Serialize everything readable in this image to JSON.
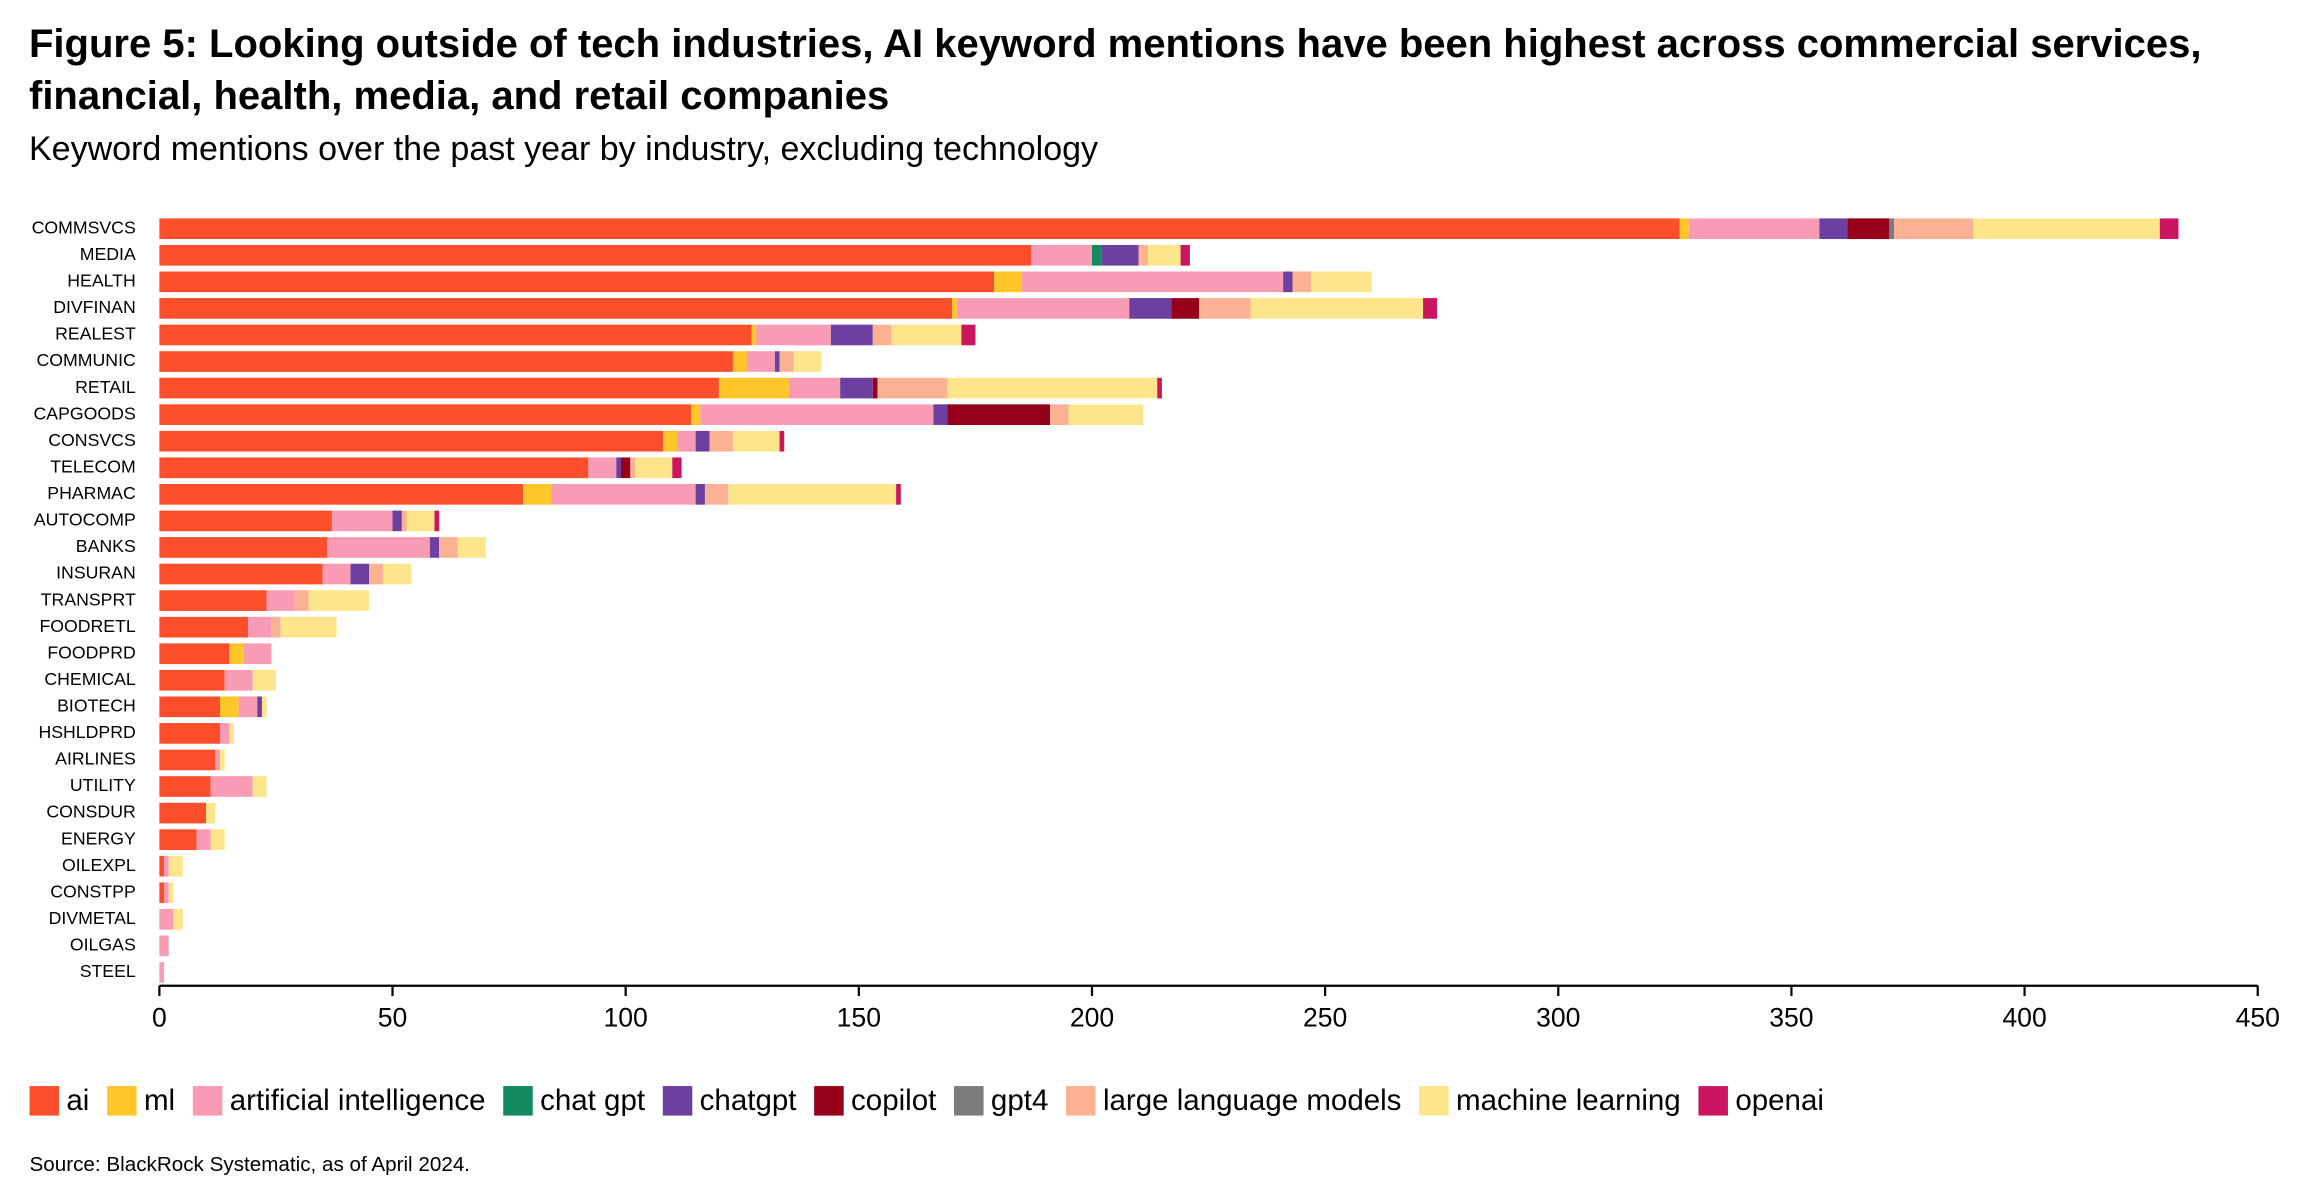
{
  "chart_data": {
    "type": "stacked-bar-horizontal",
    "title": "Figure 5: Looking outside of tech industries, AI keyword mentions have been highest across commercial services, financial, health, media, and retail companies",
    "subtitle": "Keyword mentions over the past year by industry, excluding technology",
    "source": "Source: BlackRock Systematic, as of April 2024.",
    "categories": [
      "COMMSVCS",
      "MEDIA",
      "HEALTH",
      "DIVFINAN",
      "REALEST",
      "COMMUNIC",
      "RETAIL",
      "CAPGOODS",
      "CONSVCS",
      "TELECOM",
      "PHARMAC",
      "AUTOCOMP",
      "BANKS",
      "INSURAN",
      "TRANSPRT",
      "FOODRETL",
      "FOODPRD",
      "CHEMICAL",
      "BIOTECH",
      "HSHLDPRD",
      "AIRLINES",
      "UTILITY",
      "CONSDUR",
      "ENERGY",
      "OILEXPL",
      "CONSTPP",
      "DIVMETAL",
      "OILGAS",
      "STEEL"
    ],
    "series": [
      {
        "name": "ai",
        "color": "#fc4e2a",
        "values": [
          326,
          187,
          179,
          170,
          127,
          123,
          120,
          114,
          108,
          92,
          78,
          37,
          36,
          35,
          23,
          19,
          15,
          14,
          13,
          13,
          12,
          11,
          10,
          8,
          1,
          1,
          0,
          0,
          0
        ]
      },
      {
        "name": "ml",
        "color": "#ffc629",
        "values": [
          2,
          0,
          6,
          1,
          1,
          3,
          15,
          2,
          3,
          0,
          6,
          0,
          0,
          0,
          0,
          0,
          3,
          0,
          4,
          0,
          0,
          0,
          0,
          0,
          0,
          0,
          0,
          0,
          0
        ]
      },
      {
        "name": "artificial intelligence",
        "color": "#f99bb5",
        "values": [
          28,
          13,
          56,
          37,
          16,
          6,
          11,
          50,
          4,
          6,
          31,
          13,
          22,
          6,
          6,
          5,
          6,
          6,
          4,
          2,
          1,
          9,
          0,
          3,
          1,
          1,
          3,
          2,
          1
        ]
      },
      {
        "name": "chat gpt",
        "color": "#138a5e",
        "values": [
          0,
          2,
          0,
          0,
          0,
          0,
          0,
          0,
          0,
          0,
          0,
          0,
          0,
          0,
          0,
          0,
          0,
          0,
          0,
          0,
          0,
          0,
          0,
          0,
          0,
          0,
          0,
          0,
          0
        ]
      },
      {
        "name": "chatgpt",
        "color": "#6d3fa0",
        "values": [
          6,
          8,
          2,
          9,
          9,
          1,
          7,
          3,
          3,
          1,
          2,
          2,
          2,
          4,
          0,
          0,
          0,
          0,
          1,
          0,
          0,
          0,
          0,
          0,
          0,
          0,
          0,
          0,
          0
        ]
      },
      {
        "name": "copilot",
        "color": "#960018",
        "values": [
          9,
          0,
          0,
          6,
          0,
          0,
          1,
          22,
          0,
          2,
          0,
          0,
          0,
          0,
          0,
          0,
          0,
          0,
          0,
          0,
          0,
          0,
          0,
          0,
          0,
          0,
          0,
          0,
          0
        ]
      },
      {
        "name": "gpt4",
        "color": "#7b7b7b",
        "values": [
          1,
          0,
          0,
          0,
          0,
          0,
          0,
          0,
          0,
          0,
          0,
          0,
          0,
          0,
          0,
          0,
          0,
          0,
          0,
          0,
          0,
          0,
          0,
          0,
          0,
          0,
          0,
          0,
          0
        ]
      },
      {
        "name": "large language models",
        "color": "#fbb294",
        "values": [
          17,
          2,
          4,
          11,
          4,
          3,
          15,
          4,
          5,
          1,
          5,
          1,
          4,
          3,
          3,
          2,
          0,
          0,
          0,
          0,
          0,
          0,
          0,
          0,
          0,
          0,
          0,
          0,
          0
        ]
      },
      {
        "name": "machine learning",
        "color": "#fde58b",
        "values": [
          40,
          7,
          13,
          37,
          15,
          6,
          45,
          16,
          10,
          8,
          36,
          6,
          6,
          6,
          13,
          12,
          0,
          5,
          1,
          1,
          1,
          3,
          2,
          3,
          3,
          1,
          2,
          0,
          0
        ]
      },
      {
        "name": "openai",
        "color": "#cc1560",
        "values": [
          4,
          2,
          0,
          3,
          3,
          0,
          1,
          0,
          1,
          2,
          1,
          1,
          0,
          0,
          0,
          0,
          0,
          0,
          0,
          0,
          0,
          0,
          0,
          0,
          0,
          0,
          0,
          0,
          0
        ]
      }
    ],
    "xlim": [
      0,
      450
    ],
    "xticks": [
      0,
      50,
      100,
      150,
      200,
      250,
      300,
      350,
      400,
      450
    ]
  }
}
